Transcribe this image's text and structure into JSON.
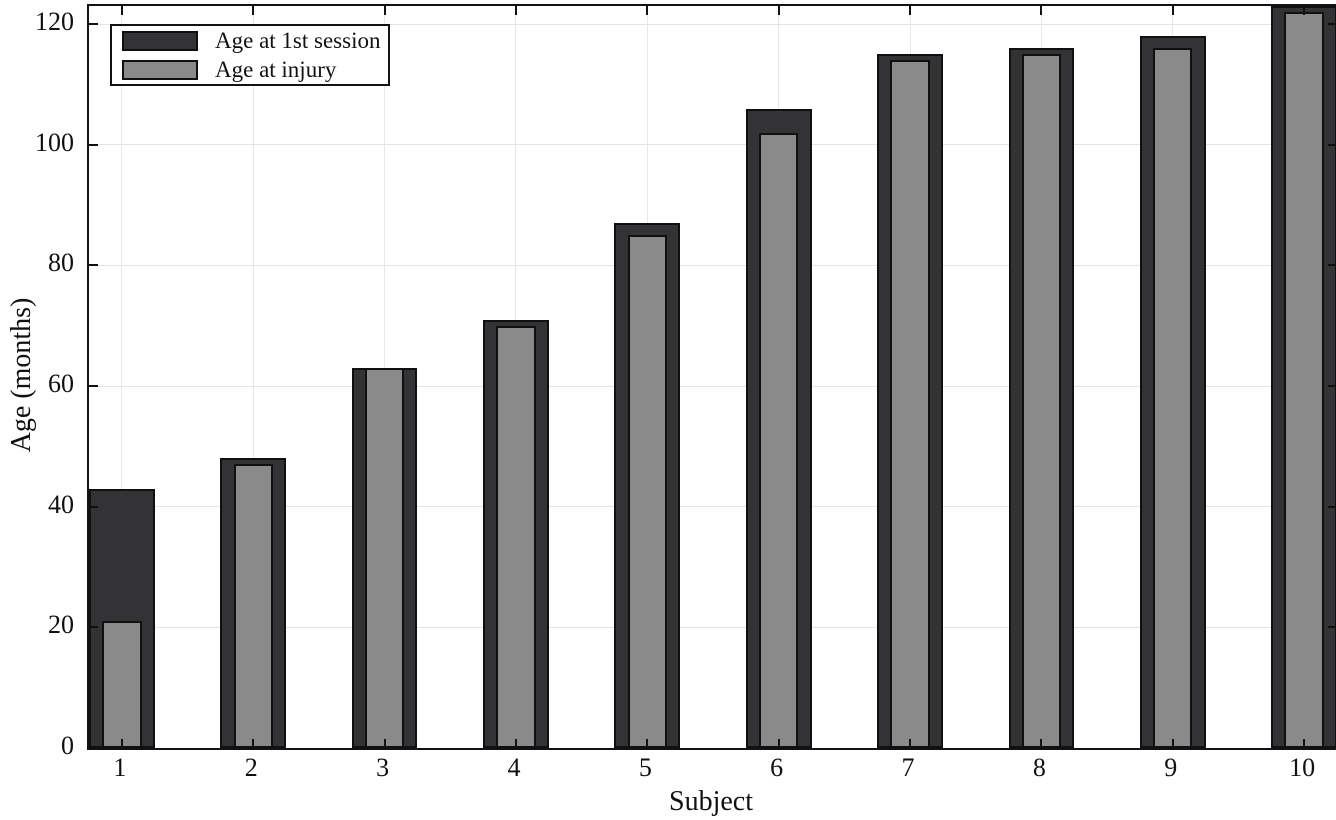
{
  "figure": {
    "xlabel": "Subject",
    "ylabel": "Age (months)"
  },
  "chart_data": {
    "type": "bar",
    "title": "",
    "xlabel": "Subject",
    "ylabel": "Age (months)",
    "categories": [
      "1",
      "2",
      "3",
      "4",
      "5",
      "6",
      "7",
      "8",
      "9",
      "10"
    ],
    "series": [
      {
        "name": "Age at 1st session",
        "color": "#333336",
        "edge_color": "#101010",
        "bar_width": 0.5,
        "values": [
          43,
          48,
          63,
          71,
          87,
          106,
          115,
          116,
          118,
          123
        ]
      },
      {
        "name": "Age at injury",
        "color": "#8a8a8a",
        "edge_color": "#101010",
        "bar_width": 0.3,
        "values": [
          21,
          47,
          63,
          70,
          85,
          102,
          114,
          115,
          116,
          122
        ]
      }
    ],
    "xlim": [
      0.75,
      10.25
    ],
    "ylim": [
      0,
      123
    ],
    "yticks": [
      0,
      20,
      40,
      60,
      80,
      100,
      120
    ],
    "grid": true,
    "grid_on_x": true,
    "grid_on_y": true,
    "tick_dir": "in",
    "legend_position": "top-left",
    "overlaid_bars": true,
    "background": "#ffffff"
  }
}
